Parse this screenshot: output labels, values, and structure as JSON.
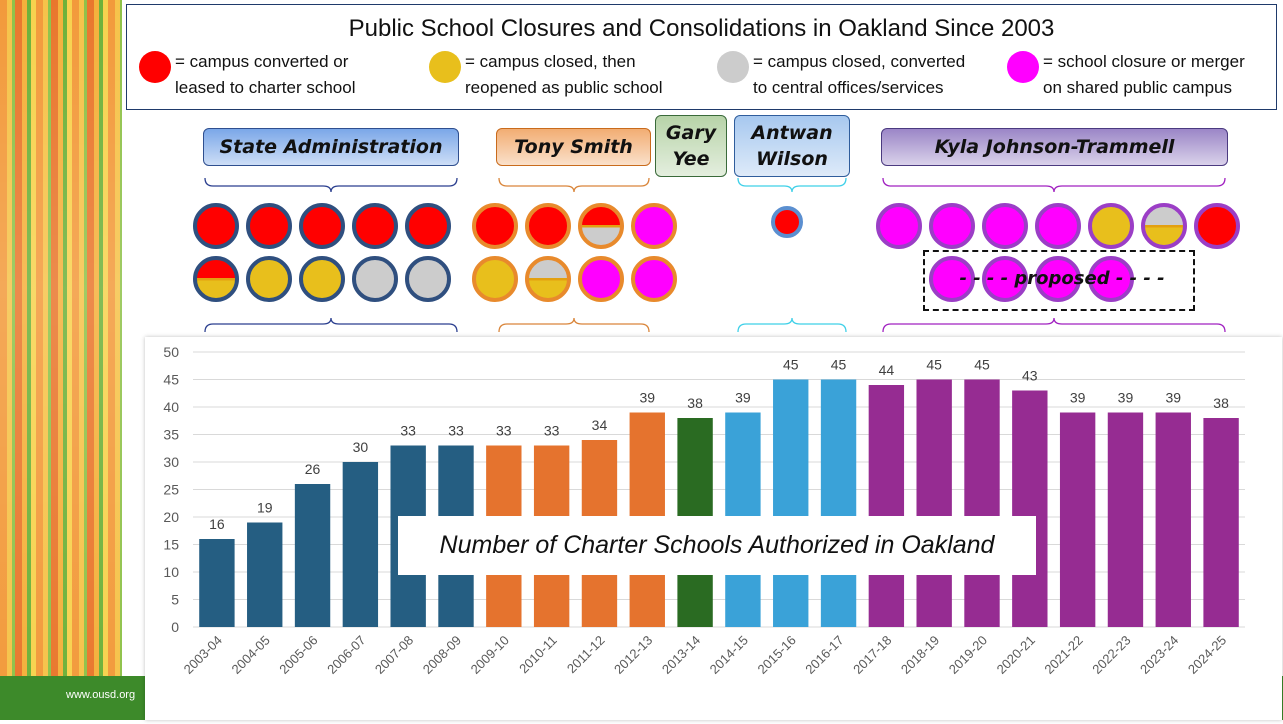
{
  "footer": {
    "url": "www.ousd.org"
  },
  "title": "Public School Closures and Consolidations in Oakland Since 2003",
  "legend": [
    {
      "color": "#ff0000",
      "line1": "= campus converted or",
      "line2": "leased to charter school"
    },
    {
      "color": "#e8bf1c",
      "line1": "= campus closed, then",
      "line2": "reopened as public school"
    },
    {
      "color": "#cccccc",
      "line1": "= campus closed, converted",
      "line2": "to central offices/services"
    },
    {
      "color": "#ff00ff",
      "line1": "= school closure or merger",
      "line2": "on shared public campus"
    }
  ],
  "periods": [
    {
      "label": "State Administration",
      "fill": "#7ba7e8",
      "border": "#2f4f8f"
    },
    {
      "label": "Tony Smith",
      "fill": "#f2ad73",
      "border": "#c96b1c"
    },
    {
      "label": "Gary Yee",
      "fill": "#b7d3a8",
      "border": "#3a6a3a"
    },
    {
      "label": "Antwan Wilson",
      "fill": "#a7c8ef",
      "border": "#2f5d9c"
    },
    {
      "label": "Kyla Johnson-Trammell",
      "fill": "#9b86c7",
      "border": "#4b3a80"
    }
  ],
  "proposed_label": "- - - - proposed - - - -",
  "colors": {
    "state": "#255e82",
    "smith": "#e5732e",
    "yee": "#2a6b22",
    "wilson": "#3aa2d8",
    "trammell": "#962c92"
  },
  "chart_overlay_text": "Number of Charter Schools Authorized in Oakland",
  "chart_data": {
    "type": "bar",
    "categories": [
      "2003-04",
      "2004-05",
      "2005-06",
      "2006-07",
      "2007-08",
      "2008-09",
      "2009-10",
      "2010-11",
      "2011-12",
      "2012-13",
      "2013-14",
      "2014-15",
      "2015-16",
      "2016-17",
      "2017-18",
      "2018-19",
      "2019-20",
      "2020-21",
      "2021-22",
      "2022-23",
      "2023-24",
      "2024-25"
    ],
    "values": [
      16,
      19,
      26,
      30,
      33,
      33,
      33,
      33,
      34,
      39,
      38,
      39,
      45,
      45,
      44,
      45,
      45,
      43,
      39,
      39,
      39,
      38
    ],
    "bar_colors": [
      "#255e82",
      "#255e82",
      "#255e82",
      "#255e82",
      "#255e82",
      "#255e82",
      "#e5732e",
      "#e5732e",
      "#e5732e",
      "#e5732e",
      "#2a6b22",
      "#3aa2d8",
      "#3aa2d8",
      "#3aa2d8",
      "#962c92",
      "#962c92",
      "#962c92",
      "#962c92",
      "#962c92",
      "#962c92",
      "#962c92",
      "#962c92"
    ],
    "ylim": [
      0,
      50
    ],
    "yticks": [
      0,
      5,
      10,
      15,
      20,
      25,
      30,
      35,
      40,
      45,
      50
    ],
    "grid": true,
    "title": "Number of Charter Schools Authorized in Oakland"
  }
}
